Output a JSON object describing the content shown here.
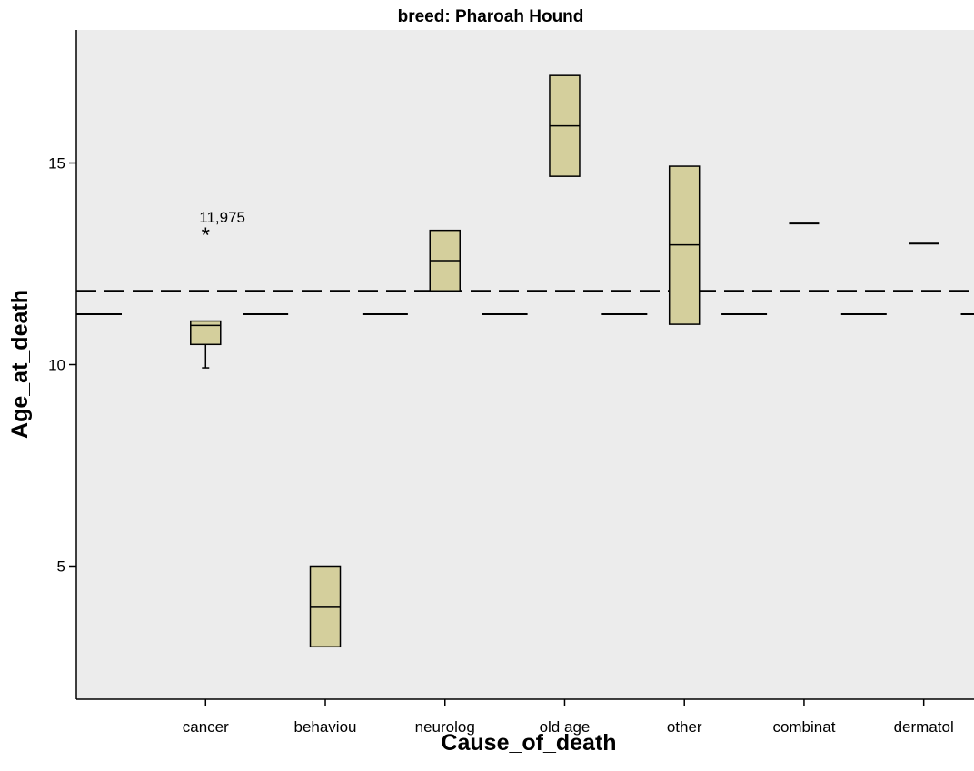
{
  "chart_data": {
    "type": "boxplot",
    "title": "breed: Pharoah Hound",
    "xlabel": "Cause_of_death",
    "ylabel": "Age_at_death",
    "ylim": [
      1.7,
      18.3
    ],
    "y_ticks": [
      5,
      10,
      15
    ],
    "y_tick_labels": [
      "5",
      "10",
      "15"
    ],
    "categories": [
      "cancer",
      "behaviou",
      "neurolog",
      "old age",
      "other",
      "combinat",
      "dermatol"
    ],
    "colors": {
      "box_fill": "#d4cf9c",
      "box_stroke": "#000000",
      "plot_bg": "#ececec",
      "reference": "#000000"
    },
    "boxes": [
      {
        "category": "cancer",
        "whisker_low": 9.92,
        "q1": 10.5,
        "median": 10.97,
        "q3": 11.08,
        "whisker_high": 11.08
      },
      {
        "category": "behaviou",
        "whisker_low": 3.0,
        "q1": 3.0,
        "median": 4.0,
        "q3": 5.0,
        "whisker_high": 5.0
      },
      {
        "category": "neurolog",
        "whisker_low": 11.83,
        "q1": 11.83,
        "median": 12.58,
        "q3": 13.33,
        "whisker_high": 13.33
      },
      {
        "category": "old age",
        "whisker_low": 14.67,
        "q1": 14.67,
        "median": 15.92,
        "q3": 17.17,
        "whisker_high": 17.17
      },
      {
        "category": "other",
        "whisker_low": 11.0,
        "q1": 11.0,
        "median": 12.97,
        "q3": 14.92,
        "whisker_high": 14.92
      },
      {
        "category": "combinat",
        "whisker_low": 13.5,
        "q1": 13.5,
        "median": 13.5,
        "q3": 13.5,
        "whisker_high": 13.5
      },
      {
        "category": "dermatol",
        "whisker_low": 13.0,
        "q1": 13.0,
        "median": 13.0,
        "q3": 13.0,
        "whisker_high": 13.0
      }
    ],
    "outliers": [
      {
        "category": "cancer",
        "value": 13.25,
        "marker": "*",
        "label": "11,975"
      }
    ],
    "reference_lines": [
      {
        "value": 11.83,
        "style": "long-dash",
        "span": "full"
      },
      {
        "value": 11.25,
        "style": "short-dash",
        "span": "segments"
      }
    ],
    "grid": false,
    "legend": "none"
  }
}
